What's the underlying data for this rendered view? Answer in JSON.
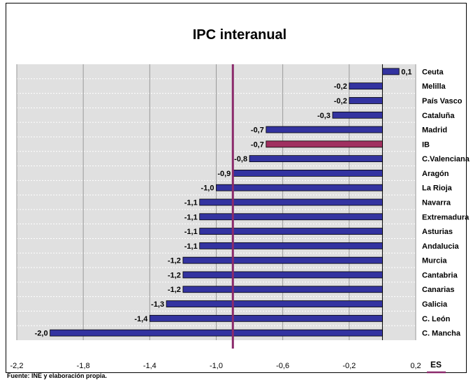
{
  "chart_data": {
    "type": "bar",
    "orientation": "horizontal",
    "title": "IPC interanual",
    "source": "Fuente: INE y elaboración propia.",
    "categories": [
      "Ceuta",
      "Melilla",
      "País Vasco",
      "Cataluña",
      "Madrid",
      "IB",
      "C.Valenciana",
      "Aragón",
      "La Rioja",
      "Navarra",
      "Extremadura",
      "Asturias",
      "Andalucia",
      "Murcia",
      "Cantabria",
      "Canarias",
      "Galicia",
      "C. León",
      "C. Mancha"
    ],
    "values": [
      0.1,
      -0.2,
      -0.2,
      -0.3,
      -0.7,
      -0.7,
      -0.8,
      -0.9,
      -1.0,
      -1.1,
      -1.1,
      -1.1,
      -1.1,
      -1.2,
      -1.2,
      -1.2,
      -1.3,
      -1.4,
      -2.0
    ],
    "value_labels": [
      "0,1",
      "-0,2",
      "-0,2",
      "-0,3",
      "-0,7",
      "-0,7",
      "-0,8",
      "-0,9",
      "-1,0",
      "-1,1",
      "-1,1",
      "-1,1",
      "-1,1",
      "-1,2",
      "-1,2",
      "-1,2",
      "-1,3",
      "-1,4",
      "-2,0"
    ],
    "highlight_category": "IB",
    "reference_line": {
      "name": "ES",
      "value": -0.9
    },
    "xlim": [
      -2.2,
      0.2
    ],
    "x_ticks": [
      -2.2,
      -1.8,
      -1.4,
      -1.0,
      -0.6,
      -0.2,
      0.2
    ],
    "x_tick_labels": [
      "-2,2",
      "-1,8",
      "-1,4",
      "-1,0",
      "-0,6",
      "-0,2",
      "0,2"
    ],
    "grid": true,
    "legend_position": "bottom-right",
    "colors": {
      "bar": "#3333a0",
      "highlight": "#a03060",
      "reference": "#8b2a6b",
      "plot_bg": "#e0e0e0",
      "grid": "#9a9a9a"
    }
  }
}
